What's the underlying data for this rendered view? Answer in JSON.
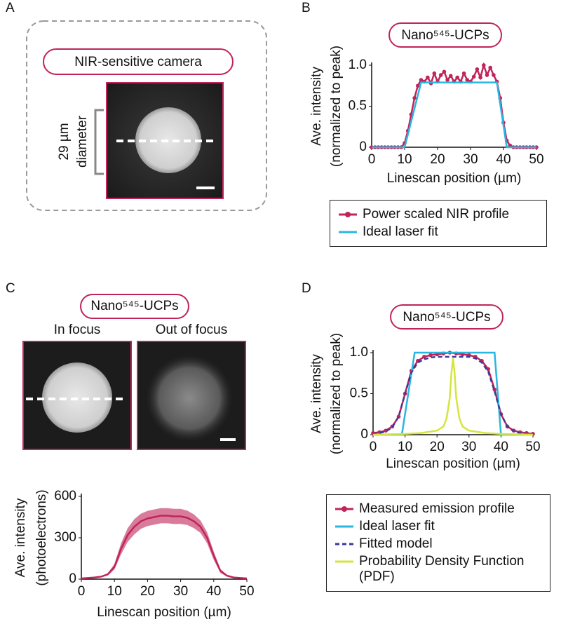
{
  "panel_labels": [
    "A",
    "B",
    "C",
    "D"
  ],
  "panel_a": {
    "title": "NIR-sensitive camera",
    "scale_lines": [
      "29 µm",
      "diameter"
    ]
  },
  "panel_c": {
    "title": "Nano⁵⁴⁵-UCPs",
    "image_titles": [
      "In focus",
      "Out of focus"
    ]
  },
  "chart_data": [
    {
      "type": "line",
      "title": "Nano⁵⁴⁵-UCPs",
      "xlabel": "Linescan position (µm)",
      "ylabel": [
        "Ave. intensity",
        "(normalized to peak)"
      ],
      "xlim": [
        0,
        50
      ],
      "xticks": [
        0,
        10,
        20,
        30,
        40,
        50
      ],
      "ylim": [
        0,
        1
      ],
      "yticks": [
        0,
        0.5,
        {
          "value": 1,
          "label": "1.0"
        }
      ],
      "series": [
        {
          "name": "Power scaled NIR profile",
          "color": "#c0245a",
          "marker": true,
          "x": [
            0,
            1,
            2,
            3,
            4,
            5,
            6,
            7,
            8,
            9,
            10,
            11,
            12,
            13,
            14,
            15,
            16,
            17,
            18,
            19,
            20,
            21,
            22,
            23,
            24,
            25,
            26,
            27,
            28,
            29,
            30,
            31,
            32,
            33,
            34,
            35,
            36,
            37,
            38,
            39,
            40,
            41,
            42,
            43,
            44,
            45,
            46,
            47,
            48,
            49,
            50
          ],
          "values": [
            0,
            0,
            0,
            0,
            0,
            0,
            0,
            0,
            0,
            0,
            0.05,
            0.2,
            0.4,
            0.6,
            0.75,
            0.82,
            0.8,
            0.85,
            0.78,
            0.9,
            0.8,
            0.88,
            0.92,
            0.82,
            0.87,
            0.8,
            0.85,
            0.8,
            0.9,
            0.82,
            0.8,
            0.86,
            0.95,
            0.85,
            1.0,
            0.88,
            0.97,
            0.88,
            0.8,
            0.6,
            0.3,
            0.08,
            0.02,
            0,
            0,
            0,
            0,
            0,
            0,
            0,
            0
          ]
        },
        {
          "name": "Ideal laser fit",
          "color": "#29b6e0",
          "x": [
            0,
            10,
            15,
            38,
            41,
            50
          ],
          "values": [
            0,
            0,
            0.79,
            0.79,
            0,
            0
          ]
        }
      ]
    },
    {
      "type": "line",
      "xlabel": "Linescan position (µm)",
      "ylabel": [
        "Ave. intensity",
        "(photoelectrons)"
      ],
      "xlim": [
        0,
        50
      ],
      "xticks": [
        0,
        10,
        20,
        30,
        40,
        50
      ],
      "ylim": [
        0,
        600
      ],
      "yticks": [
        0,
        300,
        600
      ],
      "color": "#c0245a",
      "x": [
        0,
        2,
        4,
        6,
        8,
        10,
        12,
        14,
        16,
        18,
        20,
        22,
        24,
        26,
        28,
        30,
        32,
        34,
        36,
        38,
        40,
        42,
        44,
        46,
        48,
        50
      ],
      "values": [
        5,
        8,
        12,
        18,
        35,
        90,
        220,
        320,
        380,
        420,
        440,
        450,
        460,
        460,
        455,
        455,
        445,
        420,
        380,
        300,
        170,
        60,
        25,
        12,
        8,
        5
      ],
      "error": [
        2,
        2,
        3,
        4,
        8,
        20,
        40,
        50,
        55,
        55,
        55,
        55,
        55,
        55,
        55,
        55,
        52,
        50,
        45,
        40,
        30,
        15,
        6,
        3,
        2,
        2
      ]
    },
    {
      "type": "line",
      "title": "Nano⁵⁴⁵-UCPs",
      "xlabel": "Linescan position (µm)",
      "ylabel": [
        "Ave. intensity",
        "(normalized to peak)"
      ],
      "xlim": [
        0,
        50
      ],
      "xticks": [
        0,
        10,
        20,
        30,
        40,
        50
      ],
      "ylim": [
        0,
        1
      ],
      "yticks": [
        0,
        0.5,
        {
          "value": 1,
          "label": "1.0"
        }
      ],
      "series": [
        {
          "name": "Measured emission profile",
          "color": "#c0245a",
          "marker": true,
          "x": [
            0,
            2,
            4,
            6,
            8,
            10,
            12,
            14,
            16,
            18,
            20,
            22,
            24,
            26,
            28,
            30,
            32,
            34,
            36,
            38,
            40,
            42,
            44,
            46,
            48,
            50
          ],
          "values": [
            0.02,
            0.03,
            0.05,
            0.1,
            0.22,
            0.5,
            0.78,
            0.9,
            0.95,
            0.97,
            0.98,
            0.99,
            1.0,
            0.99,
            0.98,
            0.97,
            0.95,
            0.9,
            0.8,
            0.55,
            0.25,
            0.1,
            0.05,
            0.03,
            0.02,
            0.01
          ]
        },
        {
          "name": "Ideal laser fit",
          "color": "#29b6e0",
          "x": [
            0,
            9,
            13,
            38,
            40,
            50
          ],
          "values": [
            0,
            0,
            1,
            1,
            0,
            0
          ]
        },
        {
          "name": "Fitted model",
          "color": "#3a3a9a",
          "dash": true,
          "x": [
            0,
            2,
            4,
            6,
            8,
            10,
            12,
            14,
            16,
            18,
            20,
            22,
            24,
            26,
            28,
            30,
            32,
            34,
            36,
            38,
            40,
            42,
            44,
            46,
            48,
            50
          ],
          "values": [
            0.01,
            0.02,
            0.04,
            0.09,
            0.22,
            0.5,
            0.76,
            0.88,
            0.92,
            0.94,
            0.95,
            0.95,
            0.95,
            0.95,
            0.95,
            0.95,
            0.93,
            0.88,
            0.77,
            0.53,
            0.25,
            0.1,
            0.04,
            0.02,
            0.01,
            0.01
          ]
        },
        {
          "name": "Probability Density Function (PDF)",
          "color": "#d4e63c",
          "x": [
            0,
            10,
            15,
            20,
            22,
            23,
            24,
            24.5,
            25,
            25.5,
            26,
            27,
            28,
            30,
            35,
            40,
            50
          ],
          "values": [
            0,
            0.01,
            0.02,
            0.05,
            0.1,
            0.2,
            0.45,
            0.75,
            0.93,
            0.75,
            0.45,
            0.2,
            0.1,
            0.05,
            0.02,
            0.01,
            0
          ]
        }
      ]
    }
  ]
}
